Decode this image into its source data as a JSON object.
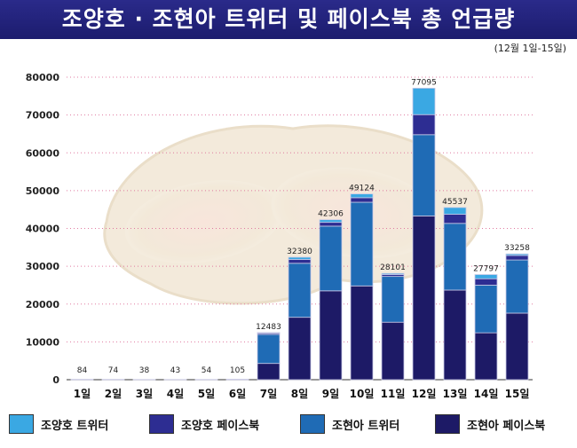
{
  "header": {
    "title": "조양호 · 조현아 트위터 및 페이스북 총 언급량",
    "subtitle": "(12월 1일-15일)"
  },
  "chart_data": {
    "type": "bar",
    "stacked": true,
    "title": "조양호 · 조현아 트위터 및 페이스북 총 언급량",
    "subtitle": "(12월 1일-15일)",
    "categories": [
      "1일",
      "2일",
      "3일",
      "4일",
      "5일",
      "6일",
      "7일",
      "8일",
      "9일",
      "10일",
      "11일",
      "12일",
      "13일",
      "14일",
      "15일"
    ],
    "ylim": [
      0,
      80000
    ],
    "yticks": [
      0,
      10000,
      20000,
      30000,
      40000,
      50000,
      60000,
      70000,
      80000
    ],
    "totals": [
      84,
      74,
      38,
      43,
      54,
      105,
      12483,
      32380,
      42306,
      49124,
      28101,
      77095,
      45537,
      27797,
      33258
    ],
    "series": [
      {
        "name": "조현아 페이스북",
        "color": "#1d1a66",
        "values": [
          0,
          0,
          0,
          0,
          0,
          0,
          4300,
          16500,
          23500,
          24800,
          15200,
          43300,
          23700,
          12400,
          17600
        ]
      },
      {
        "name": "조현아 트위터",
        "color": "#1f6bb5",
        "values": [
          84,
          74,
          38,
          43,
          54,
          105,
          7683,
          14280,
          17106,
          22124,
          12101,
          21495,
          17637,
          12597,
          14058
        ]
      },
      {
        "name": "조양호 페이스북",
        "color": "#2d2d92",
        "values": [
          0,
          0,
          0,
          0,
          0,
          0,
          300,
          1000,
          1000,
          1200,
          500,
          5300,
          2400,
          1700,
          1200
        ]
      },
      {
        "name": "조양호 트위터",
        "color": "#3aa8e3",
        "values": [
          0,
          0,
          0,
          0,
          0,
          0,
          200,
          600,
          700,
          1000,
          300,
          7000,
          1800,
          1100,
          400
        ]
      }
    ],
    "legend_position": "bottom",
    "grid": true
  },
  "legend": [
    {
      "label": "조양호 트위터",
      "color": "#3aa8e3"
    },
    {
      "label": "조양호 페이스북",
      "color": "#2d2d92"
    },
    {
      "label": "조현아 트위터",
      "color": "#1f6bb5"
    },
    {
      "label": "조현아 페이스북",
      "color": "#1d1a66"
    }
  ]
}
